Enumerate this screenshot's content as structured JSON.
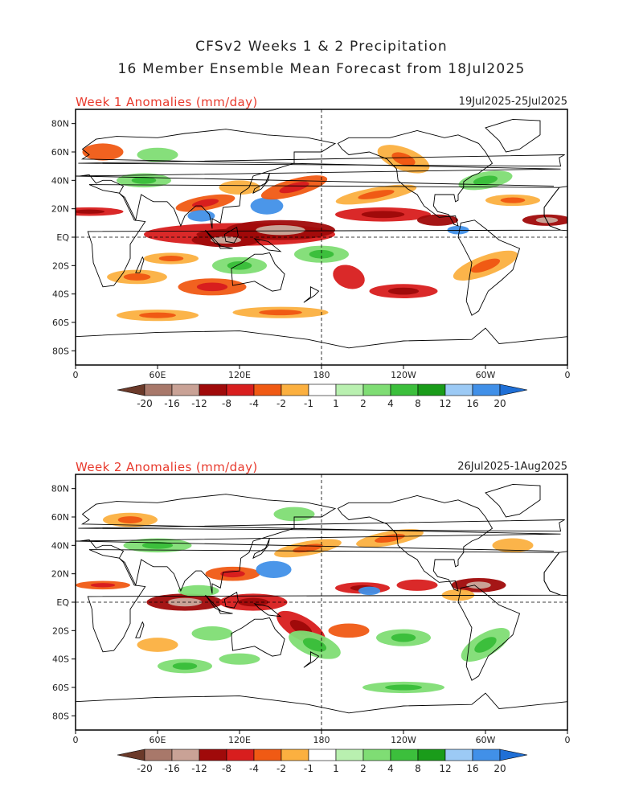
{
  "title": {
    "line1": "CFSv2 Weeks 1 & 2 Precipitation",
    "line2": "16 Member Ensemble Mean Forecast from 18Jul2025"
  },
  "panels": [
    {
      "id": "week1",
      "title": "Week 1 Anomalies (mm/day)",
      "date_range": "19Jul2025-25Jul2025"
    },
    {
      "id": "week2",
      "title": "Week 2 Anomalies (mm/day)",
      "date_range": "26Jul2025-1Aug2025"
    }
  ],
  "axes": {
    "lat_labels": [
      "80N",
      "60N",
      "40N",
      "20N",
      "EQ",
      "20S",
      "40S",
      "60S",
      "80S"
    ],
    "lat_values": [
      80,
      60,
      40,
      20,
      0,
      -20,
      -40,
      -60,
      -80
    ],
    "lon_labels": [
      "0",
      "60E",
      "120E",
      "180",
      "120W",
      "60W",
      "0"
    ],
    "lon_values": [
      0,
      60,
      120,
      180,
      240,
      300,
      360
    ]
  },
  "colorbar": {
    "labels": [
      "-20",
      "-16",
      "-12",
      "-8",
      "-4",
      "-2",
      "-1",
      "1",
      "2",
      "4",
      "8",
      "12",
      "16",
      "20"
    ],
    "colors": [
      "#6b3a2a",
      "#a8786a",
      "#c9a296",
      "#a00a0a",
      "#d81e1e",
      "#f05a14",
      "#fbb040",
      "#ffffff",
      "#b9f0b0",
      "#7fdd74",
      "#3cbf3c",
      "#1a9c1a",
      "#9ccaf5",
      "#4190e8",
      "#1f6fd6"
    ]
  }
}
